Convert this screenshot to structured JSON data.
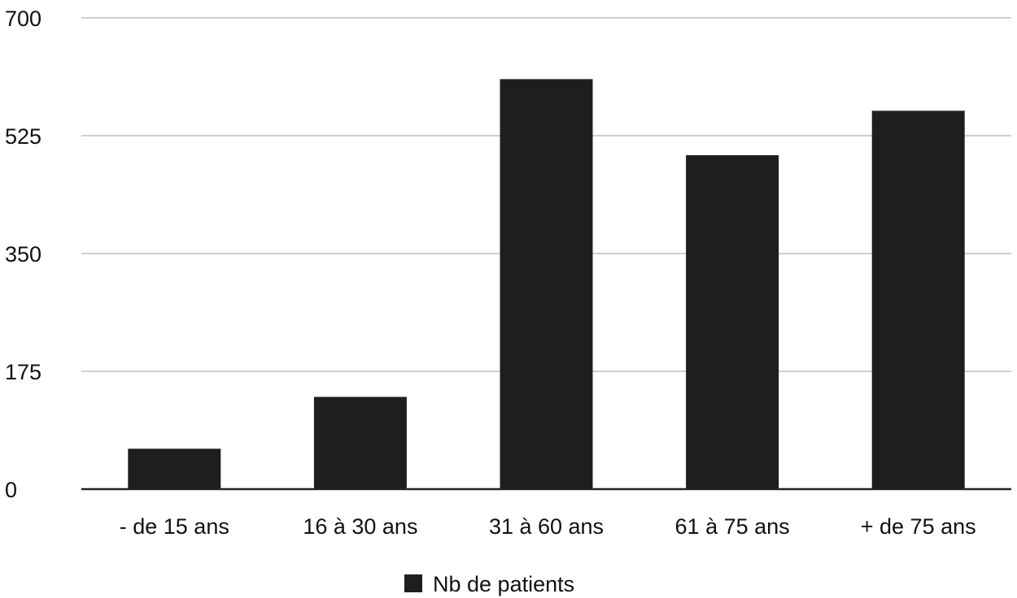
{
  "chart_data": {
    "type": "bar",
    "categories": [
      "- de 15 ans",
      "16 à 30 ans",
      "31 à 60 ans",
      "61 à 75 ans",
      "+ de 75 ans"
    ],
    "series": [
      {
        "name": "Nb de patients",
        "values": [
          60,
          137,
          609,
          496,
          562
        ]
      }
    ],
    "yticks": [
      "0",
      "175",
      "350",
      "525",
      "700"
    ],
    "ylim": [
      0,
      700
    ],
    "grid": true,
    "legend": "bottom-center",
    "colors": {
      "bar": "#1e1e1e",
      "grid": "#bdbdbd",
      "axis": "#222222"
    }
  }
}
